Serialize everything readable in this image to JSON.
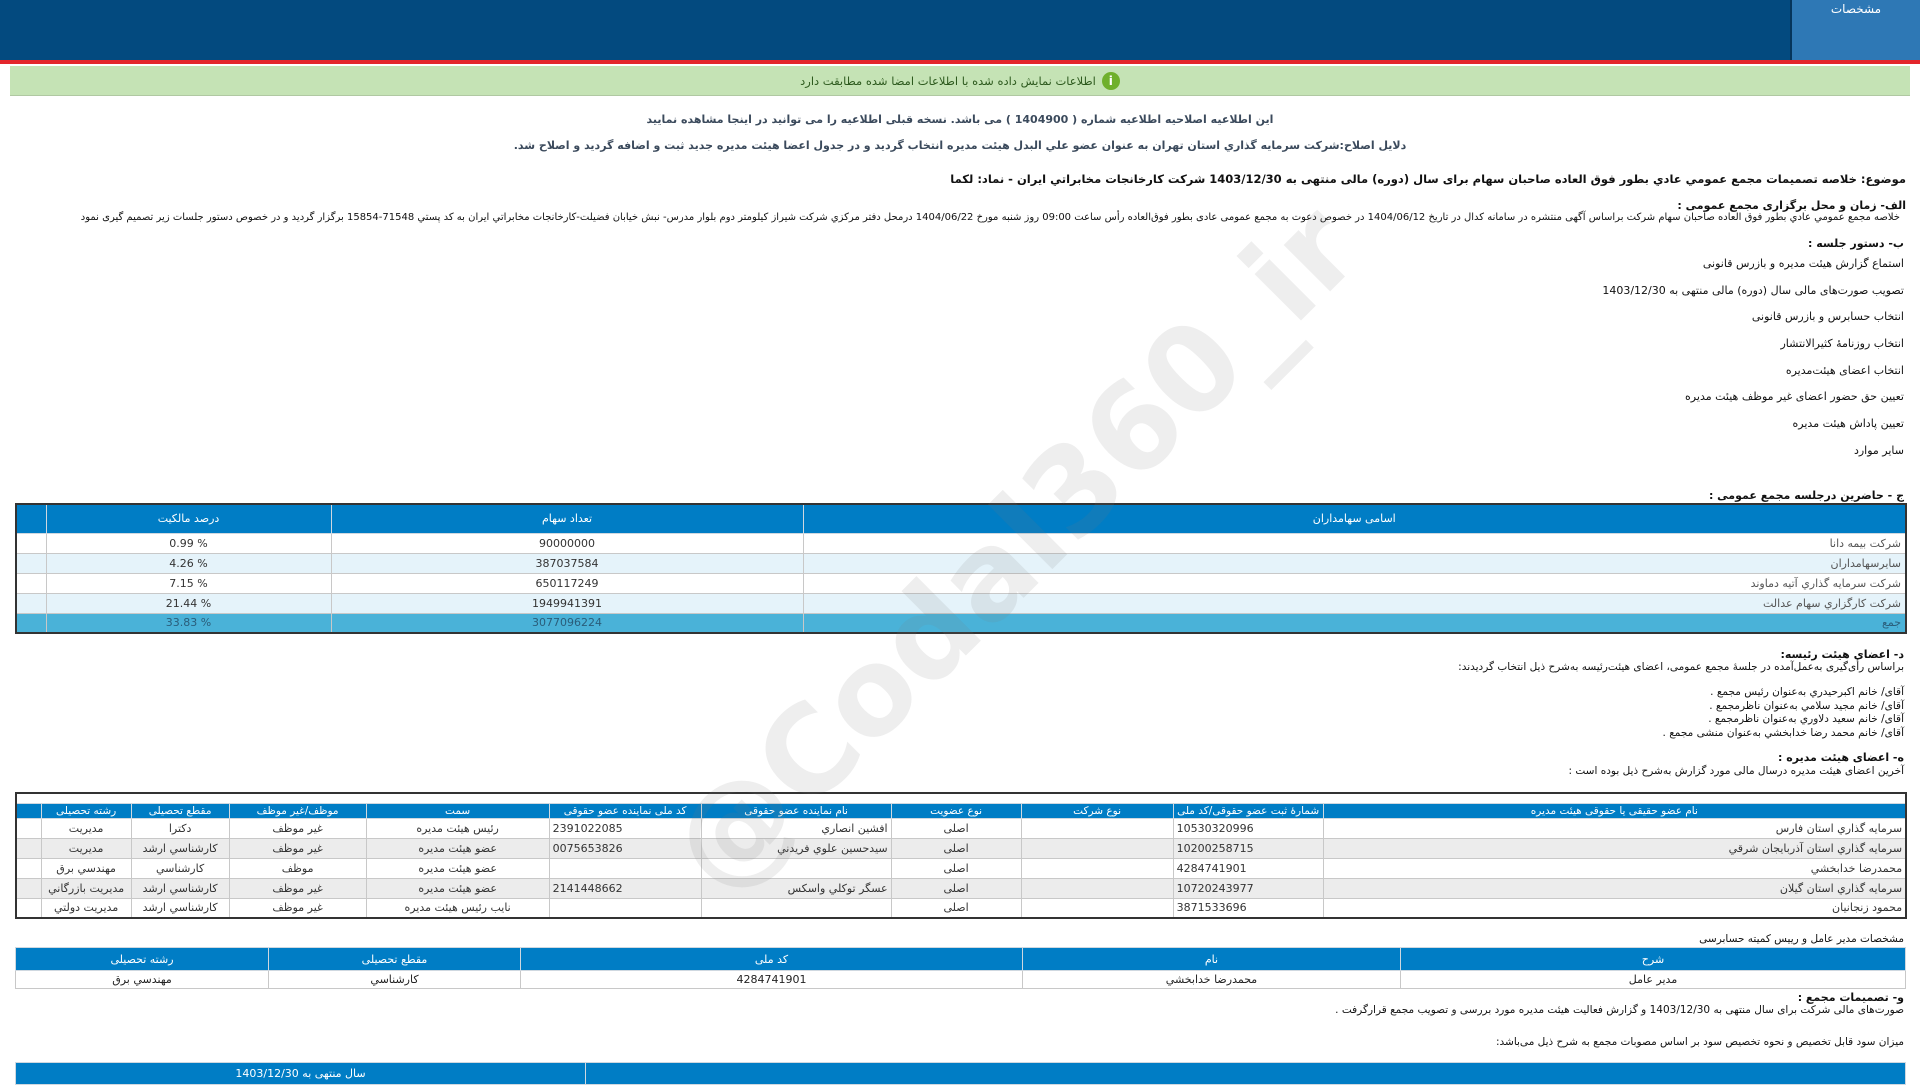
{
  "header": {
    "tab_label": "مشخصات"
  },
  "alert": {
    "text": "اطلاعات نمایش داده شده با اطلاعات امضا شده مطابقت دارد",
    "icon": "info-icon"
  },
  "notice": {
    "line1": "این اطلاعیه اصلاحیه اطلاعیه شماره ( 1404900 ) می باشد. نسخه قبلی اطلاعیه را می توانید در اینجا مشاهده نمایید",
    "line2": "دلایل اصلاح:شرکت سرمایه گذاري استان تهران به عنوان عضو علي البدل هیئت مدیره انتخاب گردید و در جدول اعضا هیئت مدیره جدید ثبت و اضافه گردید و اصلاح شد."
  },
  "title": "موضوع: خلاصه تصمیمات مجمع عمومي عادي بطور فوق العاده صاحبان سهام برای سال (دوره) مالی منتهی به 1403/12/30 شرکت کارخانجات مخابراتي ايران - نماد: لکما",
  "section_a": {
    "heading": "الف- زمان و محل برگزاری مجمع عمومی :",
    "text": "خلاصه مجمع عمومي عادي بطور فوق العاده صاحبان سهام شرکت براساس آگهی منتشره در سامانه کدال در تاریخ 1404/06/12 در خصوص دعوت به مجمع عمومی عادی بطور فوق‌العاده رأس ساعت 09:00 روز شنبه مورخ 1404/06/22 درمحل  دفتر مرکزي شرکت شيراز کيلومتر دوم بلوار مدرس- نبش خيابان فضيلت-کارخانجات مخابراتي ايران به کد پستي 71548-15854   برگزار گردید و در خصوص دستور جلسات زیر تصمیم گیری نمود"
  },
  "section_b": {
    "heading": "ب- دستور جلسه :",
    "items": [
      "استماع گزارش هیئت مدیره و بازرس قانونی",
      "تصویب صورت‌های مالی سال (دوره) مالی منتهی به 1403/12/30",
      "انتخاب حسابرس و بازرس قانونی",
      "انتخاب روزنامهٔ کثیرالانتشار",
      "انتخاب اعضای هیئت‌مدیره",
      "تعیین حق حضور اعضای غیر موظف هیئت مدیره",
      "تعیین پاداش هیئت مدیره",
      "سایر موارد"
    ]
  },
  "section_c": {
    "heading": "ج - حاضرین درجلسه مجمع عمومی :",
    "columns": [
      "اسامی سهامداران",
      "تعداد سهام",
      "درصد مالکیت"
    ],
    "rows": [
      {
        "name": "شرکت بيمه دانا",
        "shares": "90000000",
        "percent": "% 0.99"
      },
      {
        "name": "سایرسهامداران",
        "shares": "387037584",
        "percent": "% 4.26"
      },
      {
        "name": "شرکت سرمايه گذاري آتيه دماوند",
        "shares": "650117249",
        "percent": "% 7.15"
      },
      {
        "name": "شرکت کارگزاري سهام عدالت",
        "shares": "1949941391",
        "percent": "% 21.44"
      },
      {
        "name": "جمع",
        "shares": "3077096224",
        "percent": "% 33.83"
      }
    ]
  },
  "section_d": {
    "heading": "د- اعضای هیئت رئیسه:",
    "intro": "براساس رأی‌گیری به‌عمل‌آمده در جلسهٔ مجمع عمومی، اعضای هیئت‌رئیسه به‌شرح ذیل انتخاب گردیدند:",
    "members": [
      "آقای/ خانم  اکبرحيدري  به‌عنوان رئیس مجمع .",
      "آقای/ خانم  مجيد سلامي  به‌عنوان ناظرمجمع .",
      "آقای/ خانم  سعيد دلاوري  به‌عنوان ناظرمجمع .",
      "آقای/ خانم  محمد رضا خدابخشي  به‌عنوان منشی مجمع ."
    ]
  },
  "section_e": {
    "heading": "ه- اعضای هیئت مدیره :",
    "intro": "آخرین اعضای هیئت مدیره درسال مالی مورد گزارش به‌شرح ذیل بوده است :",
    "columns": [
      "نام عضو حقیقی یا حقوقی هیئت مدیره",
      "شمارهٔ ثبت عضو حقوقی/کد ملی",
      "نوع شرکت",
      "نوع عضویت",
      "نام نماینده عضو حقوقی",
      "کد ملی نماینده عضو حقوقی",
      "سمت",
      "موظف/غیر موظف",
      "مقطع تحصیلی",
      "رشته تحصیلی"
    ],
    "rows": [
      [
        "سرمايه گذاري استان فارس",
        "10530320996",
        "",
        "اصلی",
        "افشين انصاري",
        "2391022085",
        "رئيس هيئت مديره",
        "غير موظف",
        "دکترا",
        "مديريت"
      ],
      [
        "سرمايه گذاري استان آذربايجان شرقي",
        "10200258715",
        "",
        "اصلی",
        "سيدحسين علوي فريدني",
        "0075653826",
        "عضو هيئت مديره",
        "غير موظف",
        "کارشناسي ارشد",
        "مديريت"
      ],
      [
        "محمدرضا خدابخشي",
        "4284741901",
        "",
        "اصلی",
        "",
        "",
        "عضو هيئت مديره",
        "موظف",
        "کارشناسي",
        "مهندسي برق"
      ],
      [
        "سرمايه گذاري استان گيلان",
        "10720243977",
        "",
        "اصلی",
        "عسگر توکلي واسکس",
        "2141448662",
        "عضو هيئت مديره",
        "غير موظف",
        "کارشناسي ارشد",
        "مديريت بازرگاني"
      ],
      [
        "محمود زنجانيان",
        "3871533696",
        "",
        "اصلی",
        "",
        "",
        "نايب رئيس هيئت مديره",
        "غير موظف",
        "کارشناسي ارشد",
        "مديريت دولتي"
      ]
    ]
  },
  "ceo": {
    "caption": "مشخصات مدیر عامل و رییس کمیته حسابرسی",
    "columns": [
      "شرح",
      "نام",
      "کد ملی",
      "مقطع تحصیلی",
      "رشته تحصیلی"
    ],
    "rows": [
      [
        "مدير عامل",
        "محمدرضا خدابخشي",
        "4284741901",
        "کارشناسي",
        "مهندسي برق"
      ]
    ]
  },
  "section_f": {
    "heading": "و- تصمیمات مجمع :",
    "text": "صورت‌های مالی شرکت برای سال منتهی به  1403/12/30 و گزارش فعالیت هیئت مدیره مورد بررسی و تصویب مجمع قرارگرفت .",
    "profit_intro": "میزان سود قابل تخصیص و نحوه تخصیص سود بر اساس مصوبات مجمع به شرح ذیل می‌باشد:"
  },
  "profit_table": {
    "columns": [
      "",
      "سال منتهی به 1403/12/30"
    ]
  },
  "watermark": "@Codal360_ir"
}
